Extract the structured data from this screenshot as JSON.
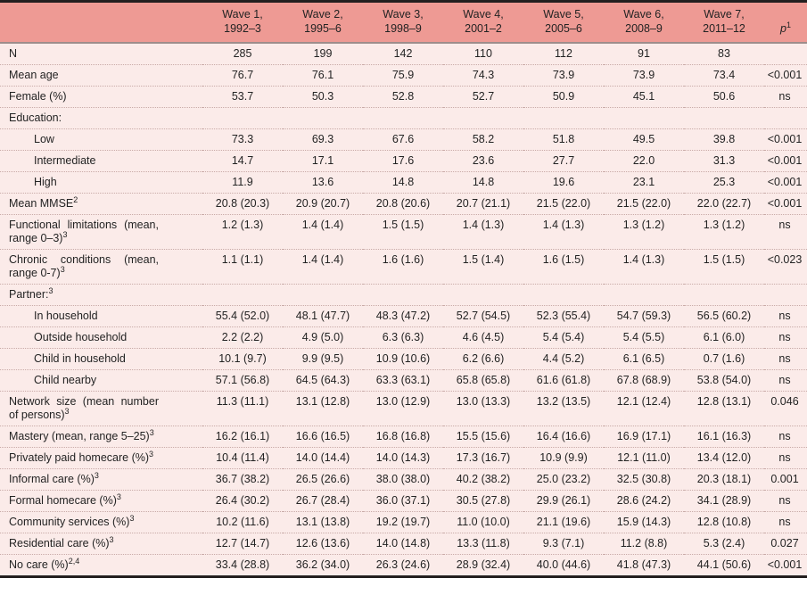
{
  "header": {
    "waves": [
      {
        "line1": "Wave 1,",
        "line2": "1992–3"
      },
      {
        "line1": "Wave 2,",
        "line2": "1995–6"
      },
      {
        "line1": "Wave 3,",
        "line2": "1998–9"
      },
      {
        "line1": "Wave 4,",
        "line2": "2001–2"
      },
      {
        "line1": "Wave 5,",
        "line2": "2005–6"
      },
      {
        "line1": "Wave 6,",
        "line2": "2008–9"
      },
      {
        "line1": "Wave 7,",
        "line2": "2011–12"
      }
    ],
    "p_label": "p",
    "p_sup": "1"
  },
  "rows": [
    {
      "label": "N",
      "sup": "",
      "indent": false,
      "section": false,
      "values": [
        "285",
        "199",
        "142",
        "110",
        "112",
        "91",
        "83"
      ],
      "p": ""
    },
    {
      "label": "Mean age",
      "sup": "",
      "indent": false,
      "section": false,
      "values": [
        "76.7",
        "76.1",
        "75.9",
        "74.3",
        "73.9",
        "73.9",
        "73.4"
      ],
      "p": "<0.001"
    },
    {
      "label": "Female (%)",
      "sup": "",
      "indent": false,
      "section": false,
      "values": [
        "53.7",
        "50.3",
        "52.8",
        "52.7",
        "50.9",
        "45.1",
        "50.6"
      ],
      "p": "ns"
    },
    {
      "label": "Education:",
      "sup": "",
      "indent": false,
      "section": true,
      "values": [
        "",
        "",
        "",
        "",
        "",
        "",
        ""
      ],
      "p": ""
    },
    {
      "label": "Low",
      "sup": "",
      "indent": true,
      "section": false,
      "values": [
        "73.3",
        "69.3",
        "67.6",
        "58.2",
        "51.8",
        "49.5",
        "39.8"
      ],
      "p": "<0.001"
    },
    {
      "label": "Intermediate",
      "sup": "",
      "indent": true,
      "section": false,
      "values": [
        "14.7",
        "17.1",
        "17.6",
        "23.6",
        "27.7",
        "22.0",
        "31.3"
      ],
      "p": "<0.001"
    },
    {
      "label": "High",
      "sup": "",
      "indent": true,
      "section": false,
      "values": [
        "11.9",
        "13.6",
        "14.8",
        "14.8",
        "19.6",
        "23.1",
        "25.3"
      ],
      "p": "<0.001"
    },
    {
      "label": "Mean MMSE",
      "sup": "2",
      "indent": false,
      "section": false,
      "values": [
        "20.8 (20.3)",
        "20.9 (20.7)",
        "20.8 (20.6)",
        "20.7 (21.1)",
        "21.5 (22.0)",
        "21.5 (22.0)",
        "22.0 (22.7)"
      ],
      "p": "<0.001"
    },
    {
      "label": "Functional limitations (mean, range 0–3)",
      "sup": "3",
      "indent": false,
      "section": false,
      "values": [
        "1.2 (1.3)",
        "1.4 (1.4)",
        "1.5 (1.5)",
        "1.4 (1.3)",
        "1.4 (1.3)",
        "1.3 (1.2)",
        "1.3 (1.2)"
      ],
      "p": "ns"
    },
    {
      "label": "Chronic conditions (mean, range 0-7)",
      "sup": "3",
      "indent": false,
      "section": false,
      "values": [
        "1.1 (1.1)",
        "1.4 (1.4)",
        "1.6 (1.6)",
        "1.5 (1.4)",
        "1.6 (1.5)",
        "1.4 (1.3)",
        "1.5 (1.5)"
      ],
      "p": "<0.023"
    },
    {
      "label": "Partner:",
      "sup": "3",
      "indent": false,
      "section": true,
      "values": [
        "",
        "",
        "",
        "",
        "",
        "",
        ""
      ],
      "p": ""
    },
    {
      "label": "In household",
      "sup": "",
      "indent": true,
      "section": false,
      "values": [
        "55.4 (52.0)",
        "48.1 (47.7)",
        "48.3 (47.2)",
        "52.7 (54.5)",
        "52.3 (55.4)",
        "54.7 (59.3)",
        "56.5 (60.2)"
      ],
      "p": "ns"
    },
    {
      "label": "Outside household",
      "sup": "",
      "indent": true,
      "section": false,
      "values": [
        "2.2 (2.2)",
        "4.9 (5.0)",
        "6.3 (6.3)",
        "4.6 (4.5)",
        "5.4 (5.4)",
        "5.4 (5.5)",
        "6.1 (6.0)"
      ],
      "p": "ns"
    },
    {
      "label": "Child in household",
      "sup": "",
      "indent": true,
      "section": false,
      "values": [
        "10.1 (9.7)",
        "9.9 (9.5)",
        "10.9 (10.6)",
        "6.2 (6.6)",
        "4.4 (5.2)",
        "6.1 (6.5)",
        "0.7 (1.6)"
      ],
      "p": "ns"
    },
    {
      "label": "Child nearby",
      "sup": "",
      "indent": true,
      "section": false,
      "values": [
        "57.1 (56.8)",
        "64.5 (64.3)",
        "63.3 (63.1)",
        "65.8 (65.8)",
        "61.6 (61.8)",
        "67.8 (68.9)",
        "53.8 (54.0)"
      ],
      "p": "ns"
    },
    {
      "label": "Network size (mean number of persons)",
      "sup": "3",
      "indent": false,
      "section": false,
      "values": [
        "11.3 (11.1)",
        "13.1 (12.8)",
        "13.0 (12.9)",
        "13.0 (13.3)",
        "13.2 (13.5)",
        "12.1 (12.4)",
        "12.8 (13.1)"
      ],
      "p": "0.046"
    },
    {
      "label": "Mastery (mean, range 5–25)",
      "sup": "3",
      "indent": false,
      "section": false,
      "values": [
        "16.2 (16.1)",
        "16.6 (16.5)",
        "16.8 (16.8)",
        "15.5 (15.6)",
        "16.4 (16.6)",
        "16.9 (17.1)",
        "16.1 (16.3)"
      ],
      "p": "ns"
    },
    {
      "label": "Privately paid homecare (%)",
      "sup": "3",
      "indent": false,
      "section": false,
      "values": [
        "10.4 (11.4)",
        "14.0 (14.4)",
        "14.0 (14.3)",
        "17.3 (16.7)",
        "10.9 (9.9)",
        "12.1 (11.0)",
        "13.4 (12.0)"
      ],
      "p": "ns"
    },
    {
      "label": "Informal care (%)",
      "sup": "3",
      "indent": false,
      "section": false,
      "values": [
        "36.7 (38.2)",
        "26.5 (26.6)",
        "38.0 (38.0)",
        "40.2 (38.2)",
        "25.0 (23.2)",
        "32.5 (30.8)",
        "20.3 (18.1)"
      ],
      "p": "0.001"
    },
    {
      "label": "Formal homecare (%)",
      "sup": "3",
      "indent": false,
      "section": false,
      "values": [
        "26.4 (30.2)",
        "26.7 (28.4)",
        "36.0 (37.1)",
        "30.5 (27.8)",
        "29.9 (26.1)",
        "28.6 (24.2)",
        "34.1 (28.9)"
      ],
      "p": "ns"
    },
    {
      "label": "Community services (%)",
      "sup": "3",
      "indent": false,
      "section": false,
      "values": [
        "10.2 (11.6)",
        "13.1 (13.8)",
        "19.2 (19.7)",
        "11.0 (10.0)",
        "21.1 (19.6)",
        "15.9 (14.3)",
        "12.8 (10.8)"
      ],
      "p": "ns"
    },
    {
      "label": "Residential care (%)",
      "sup": "3",
      "indent": false,
      "section": false,
      "values": [
        "12.7 (14.7)",
        "12.6 (13.6)",
        "14.0 (14.8)",
        "13.3 (11.8)",
        "9.3 (7.1)",
        "11.2 (8.8)",
        "5.3 (2.4)"
      ],
      "p": "0.027"
    },
    {
      "label": "No care (%)",
      "sup": "2,4",
      "indent": false,
      "section": false,
      "values": [
        "33.4 (28.8)",
        "36.2 (34.0)",
        "26.3 (24.6)",
        "28.9 (32.4)",
        "40.0 (44.6)",
        "41.8 (47.3)",
        "44.1 (50.6)"
      ],
      "p": "<0.001"
    }
  ],
  "colors": {
    "header_bg": "#ee9a94",
    "body_bg": "#fbebe9",
    "border_dark": "#231f1f",
    "header_rule": "#9e8d8b",
    "separator": "#c9aba8",
    "text": "#232323"
  }
}
